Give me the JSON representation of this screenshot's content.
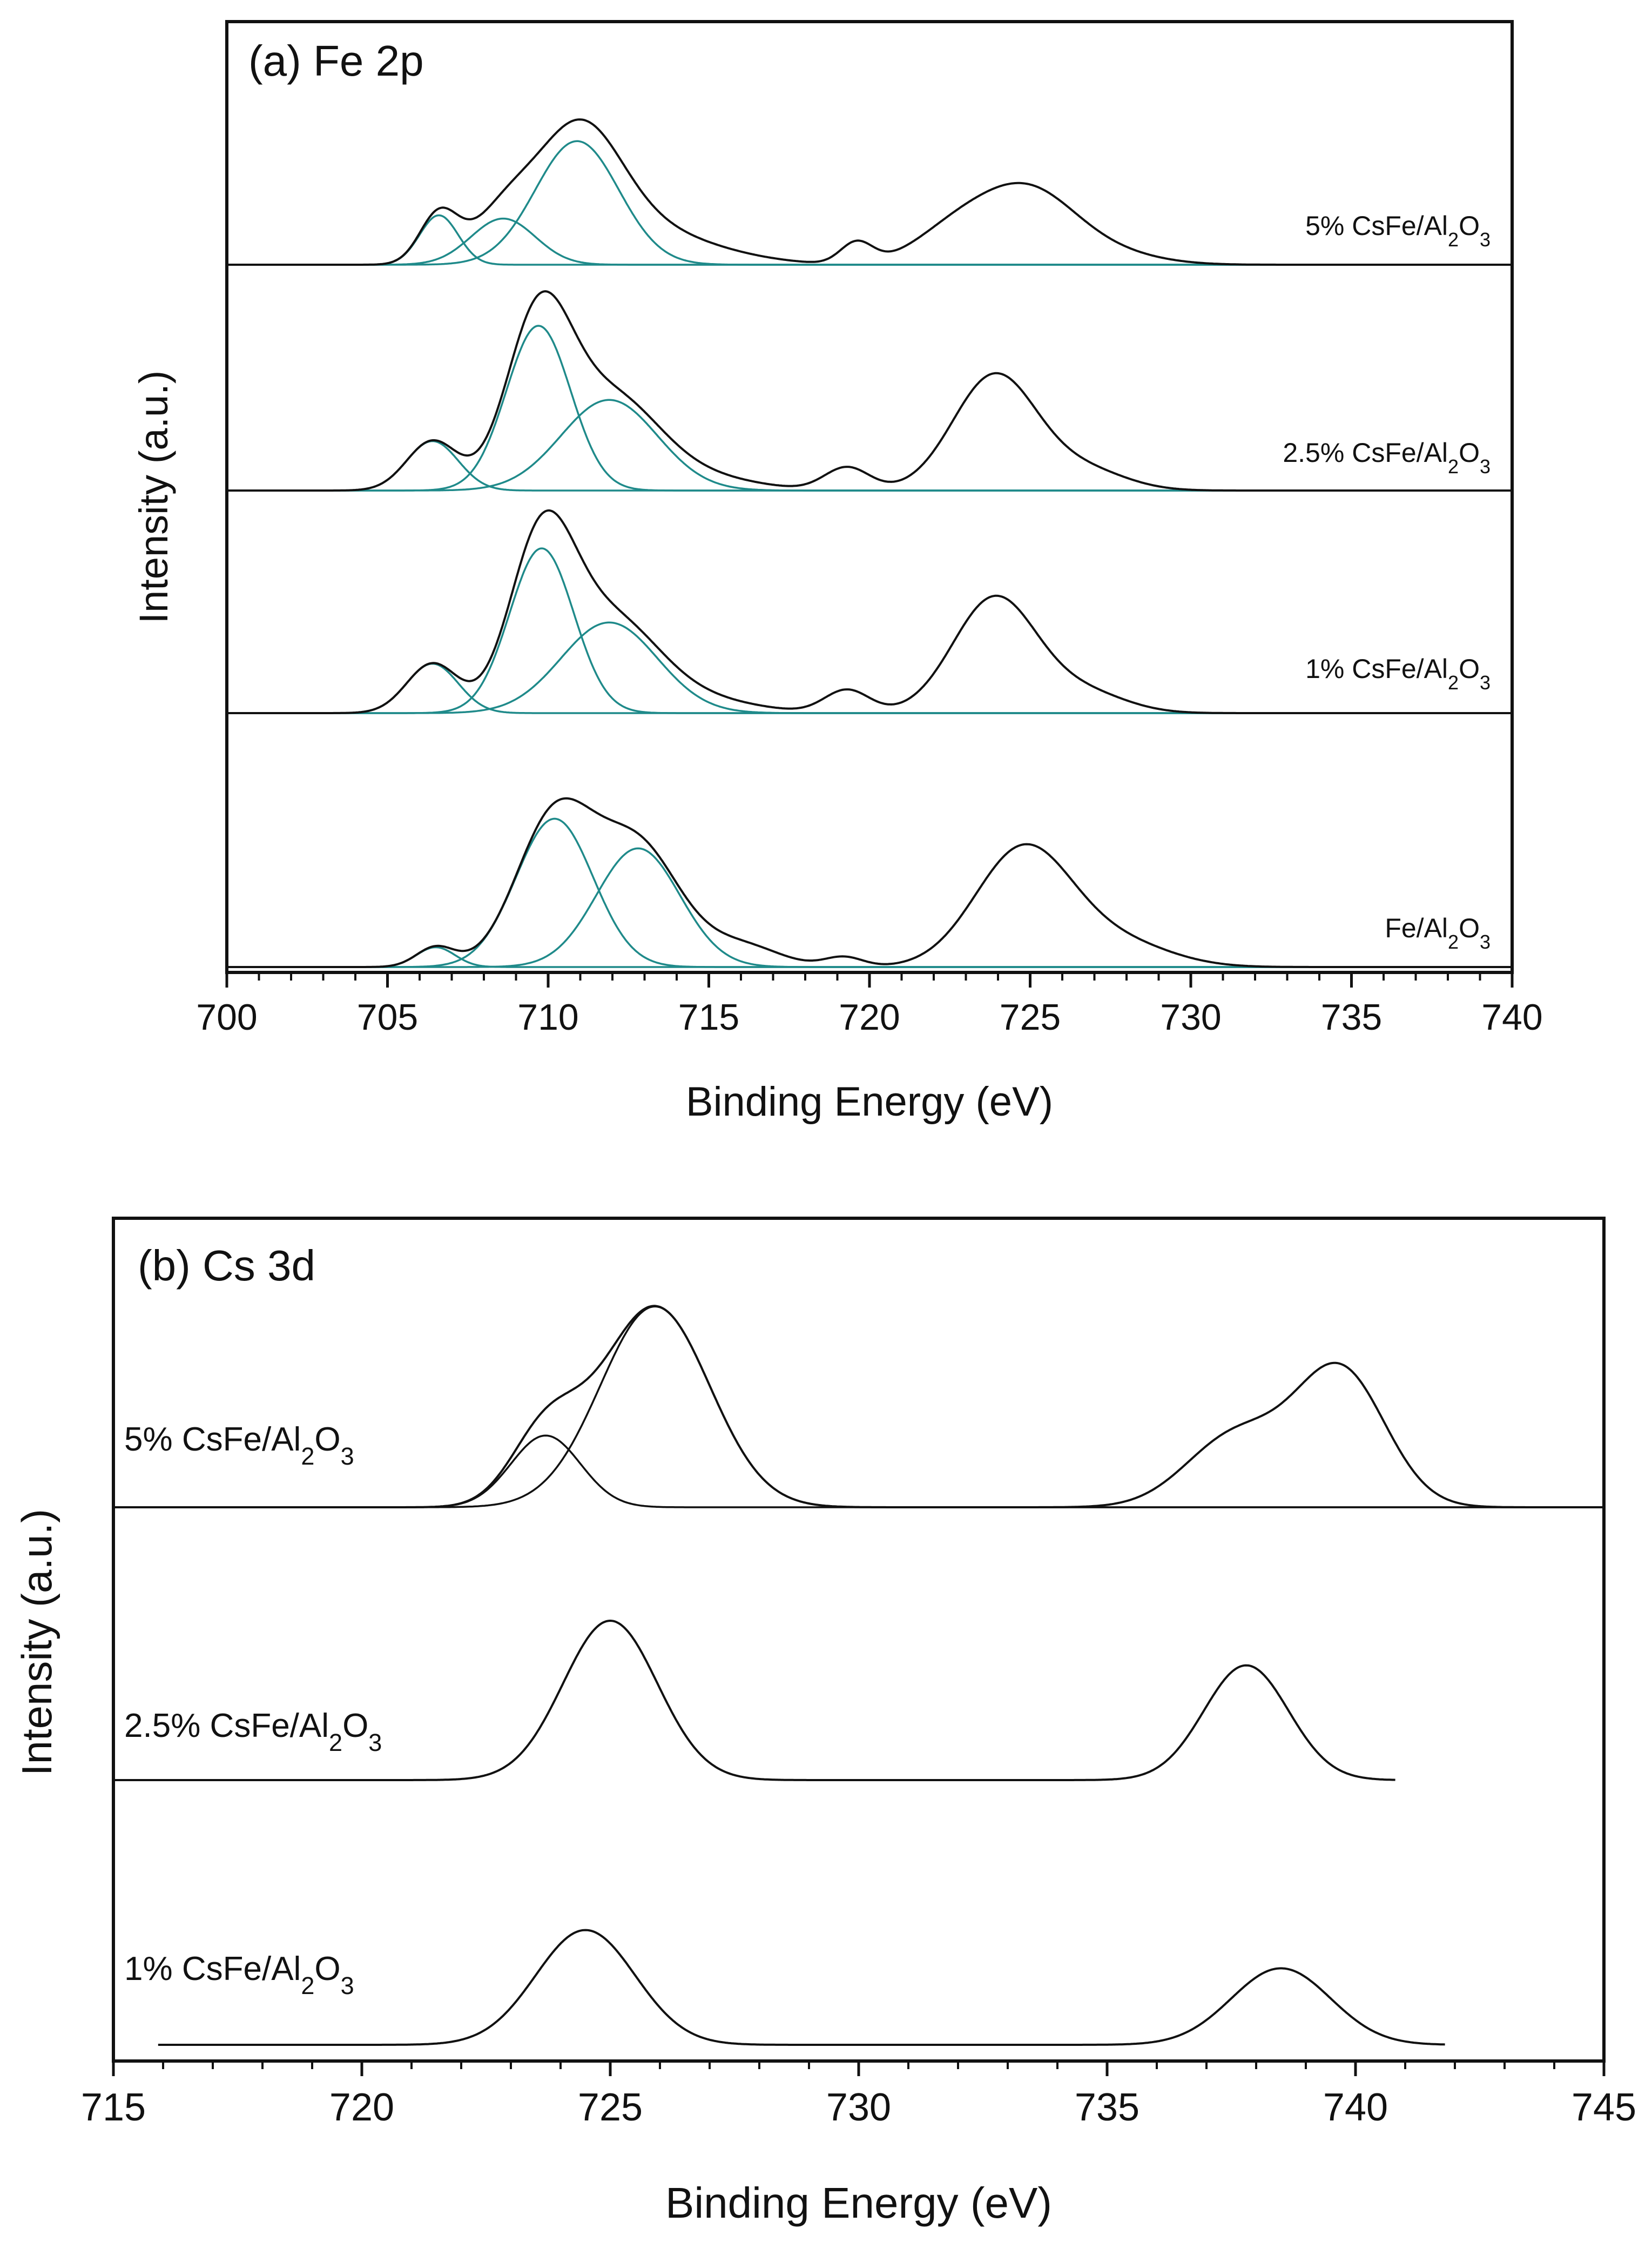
{
  "colors": {
    "envelope": "#111111",
    "component_a": "#1f8a8a",
    "component_b": "#111111",
    "axis": "#111111"
  },
  "chart_data": [
    {
      "type": "line",
      "title": "(a) Fe 2p",
      "xlabel": "Binding Energy (eV)",
      "ylabel": "Intensity (a.u.)",
      "xlim": [
        700,
        740
      ],
      "xticks": [
        "700",
        "705",
        "710",
        "715",
        "720",
        "725",
        "730",
        "735",
        "740"
      ],
      "y_ticks_shown": false,
      "grid": false,
      "legend": "none",
      "series": [
        {
          "name": "5% CsFe/Al2O3",
          "label": {
            "pre": "5% CsFe/Al",
            "sub1": "2",
            "mid": "O",
            "sub2": "3"
          },
          "x_range": [
            700,
            740
          ],
          "offset": 3.45,
          "components": [
            {
              "center": 706.6,
              "height": 0.3,
              "width": 0.6
            },
            {
              "center": 708.6,
              "height": 0.28,
              "width": 1.0
            },
            {
              "center": 710.9,
              "height": 0.75,
              "width": 1.3
            }
          ],
          "extra": [
            {
              "center": 712.5,
              "height": 0.14,
              "width": 1.6
            },
            {
              "center": 714.2,
              "height": 0.1,
              "width": 2.0
            },
            {
              "center": 719.6,
              "height": 0.13,
              "width": 0.5
            },
            {
              "center": 722.6,
              "height": 0.18,
              "width": 1.3
            },
            {
              "center": 724.9,
              "height": 0.44,
              "width": 1.5
            },
            {
              "center": 727.5,
              "height": 0.06,
              "width": 1.5
            }
          ]
        },
        {
          "name": "2.5% CsFe/Al2O3",
          "label": {
            "pre": "2.5% CsFe/Al",
            "sub1": "2",
            "mid": "O",
            "sub2": "3"
          },
          "x_range": [
            700,
            740
          ],
          "offset": 2.3,
          "components": [
            {
              "center": 706.4,
              "height": 0.3,
              "width": 0.8
            },
            {
              "center": 709.7,
              "height": 1.0,
              "width": 1.0
            },
            {
              "center": 711.9,
              "height": 0.55,
              "width": 1.5
            }
          ],
          "extra": [
            {
              "center": 714.6,
              "height": 0.08,
              "width": 1.8
            },
            {
              "center": 719.3,
              "height": 0.14,
              "width": 0.7
            },
            {
              "center": 723.9,
              "height": 0.7,
              "width": 1.3
            },
            {
              "center": 726.7,
              "height": 0.12,
              "width": 1.3
            }
          ]
        },
        {
          "name": "1% CsFe/Al2O3",
          "label": {
            "pre": "1% CsFe/Al",
            "sub1": "2",
            "mid": "O",
            "sub2": "3"
          },
          "x_range": [
            700,
            740
          ],
          "offset": 1.2,
          "components": [
            {
              "center": 706.4,
              "height": 0.3,
              "width": 0.8
            },
            {
              "center": 709.8,
              "height": 1.0,
              "width": 1.0
            },
            {
              "center": 711.9,
              "height": 0.55,
              "width": 1.5
            }
          ],
          "extra": [
            {
              "center": 714.6,
              "height": 0.08,
              "width": 1.8
            },
            {
              "center": 719.3,
              "height": 0.14,
              "width": 0.7
            },
            {
              "center": 723.9,
              "height": 0.7,
              "width": 1.3
            },
            {
              "center": 726.7,
              "height": 0.12,
              "width": 1.3
            }
          ]
        },
        {
          "name": "Fe/Al2O3",
          "label": {
            "pre": "Fe/Al",
            "sub1": "2",
            "mid": "O",
            "sub2": "3"
          },
          "x_range": [
            700,
            740
          ],
          "offset": 0.0,
          "components": [
            {
              "center": 706.5,
              "height": 0.12,
              "width": 0.6
            },
            {
              "center": 710.2,
              "height": 0.9,
              "width": 1.2
            },
            {
              "center": 712.8,
              "height": 0.72,
              "width": 1.3
            }
          ],
          "extra": [
            {
              "center": 716.0,
              "height": 0.13,
              "width": 1.2
            },
            {
              "center": 719.2,
              "height": 0.06,
              "width": 0.6
            },
            {
              "center": 724.8,
              "height": 0.72,
              "width": 1.5
            },
            {
              "center": 727.8,
              "height": 0.14,
              "width": 1.6
            }
          ]
        }
      ]
    },
    {
      "type": "line",
      "title": "(b) Cs 3d",
      "xlabel": "Binding Energy (eV)",
      "ylabel": "Intensity (a.u.)",
      "xlim": [
        715,
        745
      ],
      "xticks": [
        "715",
        "720",
        "725",
        "730",
        "735",
        "740",
        "745"
      ],
      "y_ticks_shown": false,
      "grid": false,
      "legend": "none",
      "series": [
        {
          "name": "5% CsFe/Al2O3",
          "label": {
            "pre": "5% CsFe/Al",
            "sub1": "2",
            "mid": "O",
            "sub2": "3"
          },
          "x_range": [
            715,
            745
          ],
          "offset": 3.5,
          "components": [
            {
              "center": 723.7,
              "height": 0.45,
              "width": 0.7
            },
            {
              "center": 725.9,
              "height": 1.26,
              "width": 1.1
            }
          ],
          "extra": [
            {
              "center": 737.6,
              "height": 0.45,
              "width": 1.0
            },
            {
              "center": 739.7,
              "height": 0.85,
              "width": 0.9
            }
          ]
        },
        {
          "name": "2.5% CsFe/Al2O3",
          "label": {
            "pre": "2.5% CsFe/Al",
            "sub1": "2",
            "mid": "O",
            "sub2": "3"
          },
          "x_range": [
            715,
            740.8
          ],
          "offset": 1.75,
          "components": [],
          "extra": [
            {
              "center": 725.0,
              "height": 1.0,
              "width": 0.95
            },
            {
              "center": 737.8,
              "height": 0.72,
              "width": 0.85
            }
          ]
        },
        {
          "name": "1% CsFe/Al2O3",
          "label": {
            "pre": "1% CsFe/Al",
            "sub1": "2",
            "mid": "O",
            "sub2": "3"
          },
          "x_range": [
            715.9,
            741.8
          ],
          "offset": 0.0,
          "components": [],
          "extra": [
            {
              "center": 724.5,
              "height": 0.72,
              "width": 1.0
            },
            {
              "center": 738.5,
              "height": 0.48,
              "width": 1.0
            }
          ]
        }
      ]
    }
  ]
}
